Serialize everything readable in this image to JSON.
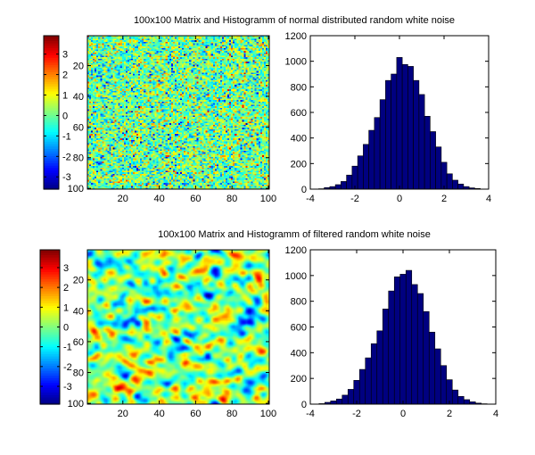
{
  "chart_data": [
    {
      "type": "heatmap",
      "panel": "top-left",
      "title": "100x100 Matrix and Histogramm of normal distributed random white noise",
      "matrix_size": [
        100,
        100
      ],
      "texture": "white-noise",
      "colormap": "jet",
      "x_ticks": [
        20,
        40,
        60,
        80,
        100
      ],
      "y_ticks": [
        20,
        40,
        60,
        80,
        100
      ],
      "xlim": [
        0.5,
        100.5
      ],
      "ylim": [
        0.5,
        100.5
      ],
      "colorbar": {
        "placement": "left",
        "range": [
          -3.6,
          3.9
        ],
        "ticks": [
          3,
          2,
          1,
          0,
          -1,
          -2,
          -3
        ]
      }
    },
    {
      "type": "bar",
      "panel": "top-right",
      "x": [
        -3.5,
        -3.25,
        -3.0,
        -2.75,
        -2.5,
        -2.25,
        -2.0,
        -1.75,
        -1.5,
        -1.25,
        -1.0,
        -0.75,
        -0.5,
        -0.25,
        0.0,
        0.25,
        0.5,
        0.75,
        1.0,
        1.25,
        1.5,
        1.75,
        2.0,
        2.25,
        2.5,
        2.75,
        3.0,
        3.25,
        3.5
      ],
      "values": [
        3,
        12,
        20,
        35,
        60,
        110,
        180,
        260,
        350,
        460,
        560,
        700,
        850,
        900,
        1030,
        975,
        960,
        850,
        740,
        570,
        450,
        330,
        210,
        120,
        70,
        40,
        20,
        10,
        5
      ],
      "xlim": [
        -4,
        4
      ],
      "ylim": [
        0,
        1200
      ],
      "x_ticks": [
        -4,
        -2,
        0,
        2,
        4
      ],
      "y_ticks": [
        0,
        200,
        400,
        600,
        800,
        1000,
        1200
      ],
      "bar_color": "#000080"
    },
    {
      "type": "heatmap",
      "panel": "bottom-left",
      "title": "100x100 Matrix and Histogramm of filtered random white noise",
      "matrix_size": [
        100,
        100
      ],
      "texture": "smoothed-noise",
      "colormap": "jet",
      "x_ticks": [
        20,
        40,
        60,
        80,
        100
      ],
      "y_ticks": [
        20,
        40,
        60,
        80,
        100
      ],
      "xlim": [
        0.5,
        100.5
      ],
      "ylim": [
        0.5,
        100.5
      ],
      "colorbar": {
        "placement": "left",
        "range": [
          -3.9,
          3.9
        ],
        "ticks": [
          3,
          2,
          1,
          0,
          -1,
          -2,
          -3
        ]
      }
    },
    {
      "type": "bar",
      "panel": "bottom-right",
      "x": [
        -3.5,
        -3.25,
        -3.0,
        -2.75,
        -2.5,
        -2.25,
        -2.0,
        -1.75,
        -1.5,
        -1.25,
        -1.0,
        -0.75,
        -0.5,
        -0.25,
        0.0,
        0.25,
        0.5,
        0.75,
        1.0,
        1.25,
        1.5,
        1.75,
        2.0,
        2.25,
        2.5,
        2.75,
        3.0,
        3.25,
        3.5
      ],
      "values": [
        4,
        14,
        25,
        40,
        70,
        115,
        185,
        270,
        360,
        470,
        570,
        740,
        880,
        990,
        1010,
        1040,
        930,
        860,
        720,
        560,
        430,
        300,
        190,
        110,
        60,
        35,
        18,
        8,
        3
      ],
      "xlim": [
        -4,
        4
      ],
      "ylim": [
        0,
        1200
      ],
      "x_ticks": [
        -4,
        -2,
        0,
        2,
        4
      ],
      "y_ticks": [
        0,
        200,
        400,
        600,
        800,
        1000,
        1200
      ],
      "bar_color": "#000080"
    }
  ]
}
